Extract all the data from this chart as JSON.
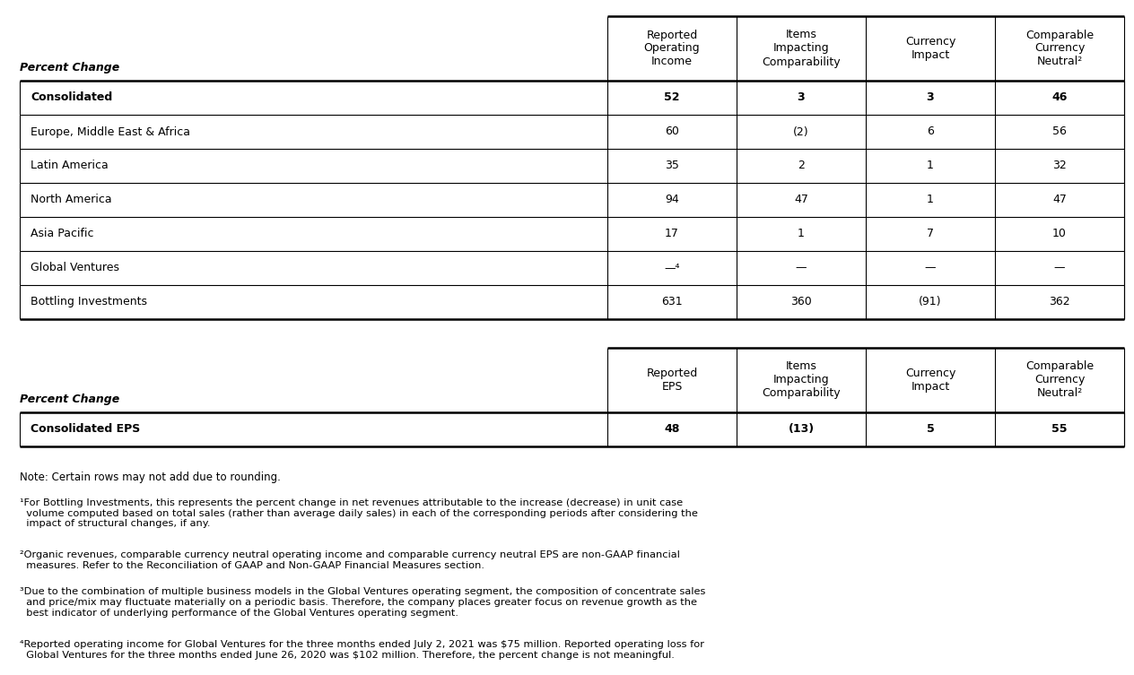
{
  "table1_header": [
    "Reported\nOperating\nIncome",
    "Items\nImpacting\nComparability",
    "Currency\nImpact",
    "Comparable\nCurrency\nNeutral²"
  ],
  "table1_label": "Percent Change",
  "table1_rows": [
    {
      "label": "Consolidated",
      "bold": true,
      "values": [
        "52",
        "3",
        "3",
        "46"
      ]
    },
    {
      "label": "Europe, Middle East & Africa",
      "bold": false,
      "values": [
        "60",
        "(2)",
        "6",
        "56"
      ]
    },
    {
      "label": "Latin America",
      "bold": false,
      "values": [
        "35",
        "2",
        "1",
        "32"
      ]
    },
    {
      "label": "North America",
      "bold": false,
      "values": [
        "94",
        "47",
        "1",
        "47"
      ]
    },
    {
      "label": "Asia Pacific",
      "bold": false,
      "values": [
        "17",
        "1",
        "7",
        "10"
      ]
    },
    {
      "label": "Global Ventures",
      "bold": false,
      "values": [
        "—⁴",
        "—",
        "—",
        "—"
      ]
    },
    {
      "label": "Bottling Investments",
      "bold": false,
      "values": [
        "631",
        "360",
        "(91)",
        "362"
      ]
    }
  ],
  "table2_header": [
    "Reported\nEPS",
    "Items\nImpacting\nComparability",
    "Currency\nImpact",
    "Comparable\nCurrency\nNeutral²"
  ],
  "table2_label": "Percent Change",
  "table2_rows": [
    {
      "label": "Consolidated EPS",
      "bold": true,
      "values": [
        "48",
        "(13)",
        "5",
        "55"
      ]
    }
  ],
  "note": "Note: Certain rows may not add due to rounding.",
  "footnote1": "¹For Bottling Investments, this represents the percent change in net revenues attributable to the increase (decrease) in unit case\n  volume computed based on total sales (rather than average daily sales) in each of the corresponding periods after considering the\n  impact of structural changes, if any.",
  "footnote2": "²Organic revenues, comparable currency neutral operating income and comparable currency neutral EPS are non-GAAP financial\n  measures. Refer to the Reconciliation of GAAP and Non-GAAP Financial Measures section.",
  "footnote3": "³Due to the combination of multiple business models in the Global Ventures operating segment, the composition of concentrate sales\n  and price/mix may fluctuate materially on a periodic basis. Therefore, the company places greater focus on revenue growth as the\n  best indicator of underlying performance of the Global Ventures operating segment.",
  "footnote4": "⁴Reported operating income for Global Ventures for the three months ended July 2, 2021 was $75 million. Reported operating loss for\n  Global Ventures for the three months ended June 26, 2020 was $102 million. Therefore, the percent change is not meaningful.",
  "bg_color": "#ffffff",
  "text_color": "#000000",
  "line_color": "#000000",
  "font_size": 9.0,
  "footnote_font_size": 8.2,
  "note_font_size": 8.5,
  "figsize": [
    12.64,
    7.53
  ]
}
